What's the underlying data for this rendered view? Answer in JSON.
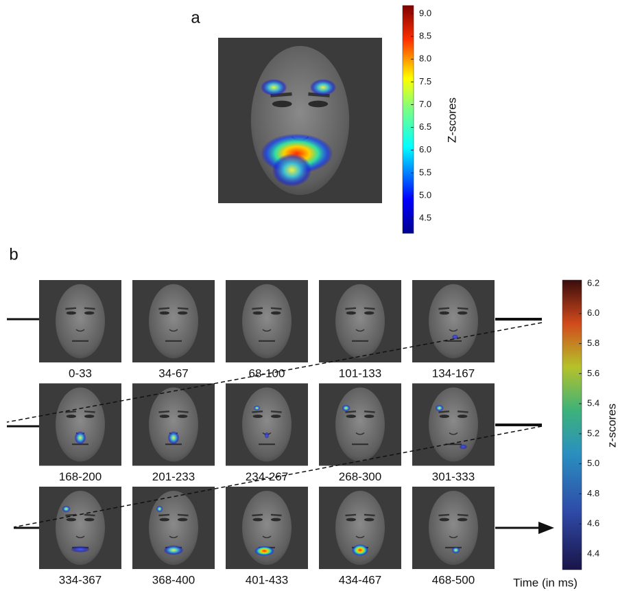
{
  "panel_a": {
    "label": "a",
    "colorbar_label": "Z-scores",
    "colorbar_lim": [
      4.17,
      9.18
    ],
    "colorbar_ticks": [
      {
        "value": 4.5,
        "label": "4.5"
      },
      {
        "value": 5,
        "label": "5.0"
      },
      {
        "value": 5.5,
        "label": "5.5"
      },
      {
        "value": 6,
        "label": "6.0"
      },
      {
        "value": 6.5,
        "label": "6.5"
      },
      {
        "value": 7,
        "label": "7.0"
      },
      {
        "value": 7.5,
        "label": "7.5"
      },
      {
        "value": 8,
        "label": "8.0"
      },
      {
        "value": 8.5,
        "label": "8.5"
      },
      {
        "value": 9,
        "label": "9.0"
      }
    ]
  },
  "panel_b": {
    "label": "b",
    "colorbar_label": "z-scores",
    "time_label": "Time (in ms)",
    "colorbar_lim": [
      4.295,
      6.223
    ],
    "colorbar_ticks": [
      4.4,
      4.6,
      4.8,
      {
        "value": 5,
        "label": "5.0"
      },
      5.2,
      5.4,
      5.6,
      5.8,
      {
        "value": 6,
        "label": "6.0"
      },
      6.2
    ],
    "frames": [
      "0-33",
      "34-67",
      "68-100",
      "101-133",
      "134-167",
      "168-200",
      "201-233",
      "234-267",
      "268-300",
      "301-333",
      "334-367",
      "368-400",
      "401-433",
      "434-467",
      "468-500"
    ]
  }
}
